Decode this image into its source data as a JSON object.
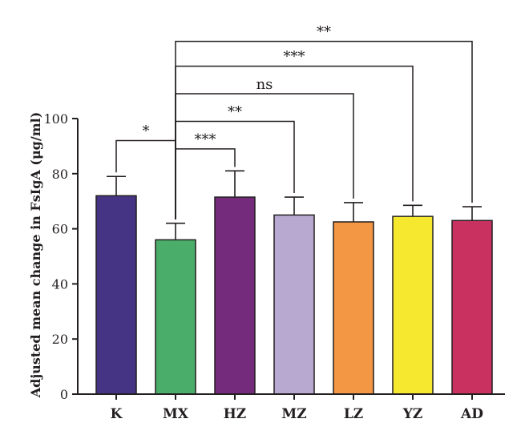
{
  "chart_data": {
    "type": "bar",
    "title": "",
    "xlabel": "",
    "ylabel": "Adjusted mean change in FsIgA (μg/ml)",
    "ylim": [
      0,
      100
    ],
    "yticks": [
      0,
      20,
      40,
      60,
      80,
      100
    ],
    "grid": false,
    "categories": [
      "K",
      "MX",
      "HZ",
      "MZ",
      "LZ",
      "YZ",
      "AD"
    ],
    "values": [
      72,
      56,
      71.5,
      65,
      62.5,
      64.5,
      63
    ],
    "errors": [
      7,
      6,
      9.5,
      6.5,
      7,
      4,
      5
    ],
    "colors": [
      "#453383",
      "#4aae6a",
      "#742b7c",
      "#b7a9d0",
      "#f39744",
      "#f6e82e",
      "#c83160"
    ],
    "significance": [
      {
        "from": "K",
        "to": "MX",
        "label": "*",
        "level": 92
      },
      {
        "from": "MX",
        "to": "HZ",
        "label": "***",
        "level": 89
      },
      {
        "from": "MX",
        "to": "MZ",
        "label": "**",
        "level": 99
      },
      {
        "from": "MX",
        "to": "LZ",
        "label": "ns",
        "level": 109
      },
      {
        "from": "MX",
        "to": "YZ",
        "label": "***",
        "level": 119
      },
      {
        "from": "MX",
        "to": "AD",
        "label": "**",
        "level": 128
      }
    ]
  }
}
